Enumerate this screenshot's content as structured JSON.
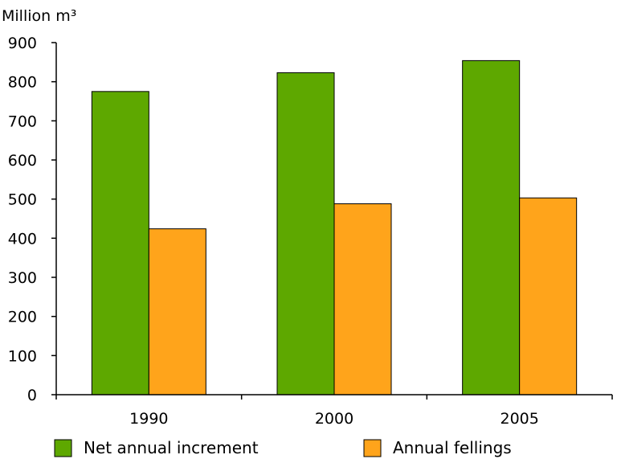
{
  "chart_data": {
    "type": "bar",
    "unit_label": "Million m³",
    "categories": [
      "1990",
      "2000",
      "2005"
    ],
    "series": [
      {
        "name": "Net annual increment",
        "color": "#5ea800",
        "values": [
          775,
          823,
          854
        ]
      },
      {
        "name": "Annual fellings",
        "color": "#ffa41b",
        "values": [
          424,
          488,
          503
        ]
      }
    ],
    "yticks": [
      0,
      100,
      200,
      300,
      400,
      500,
      600,
      700,
      800,
      900
    ],
    "ylim": [
      0,
      900
    ],
    "grid": false,
    "legend_position": "bottom"
  }
}
